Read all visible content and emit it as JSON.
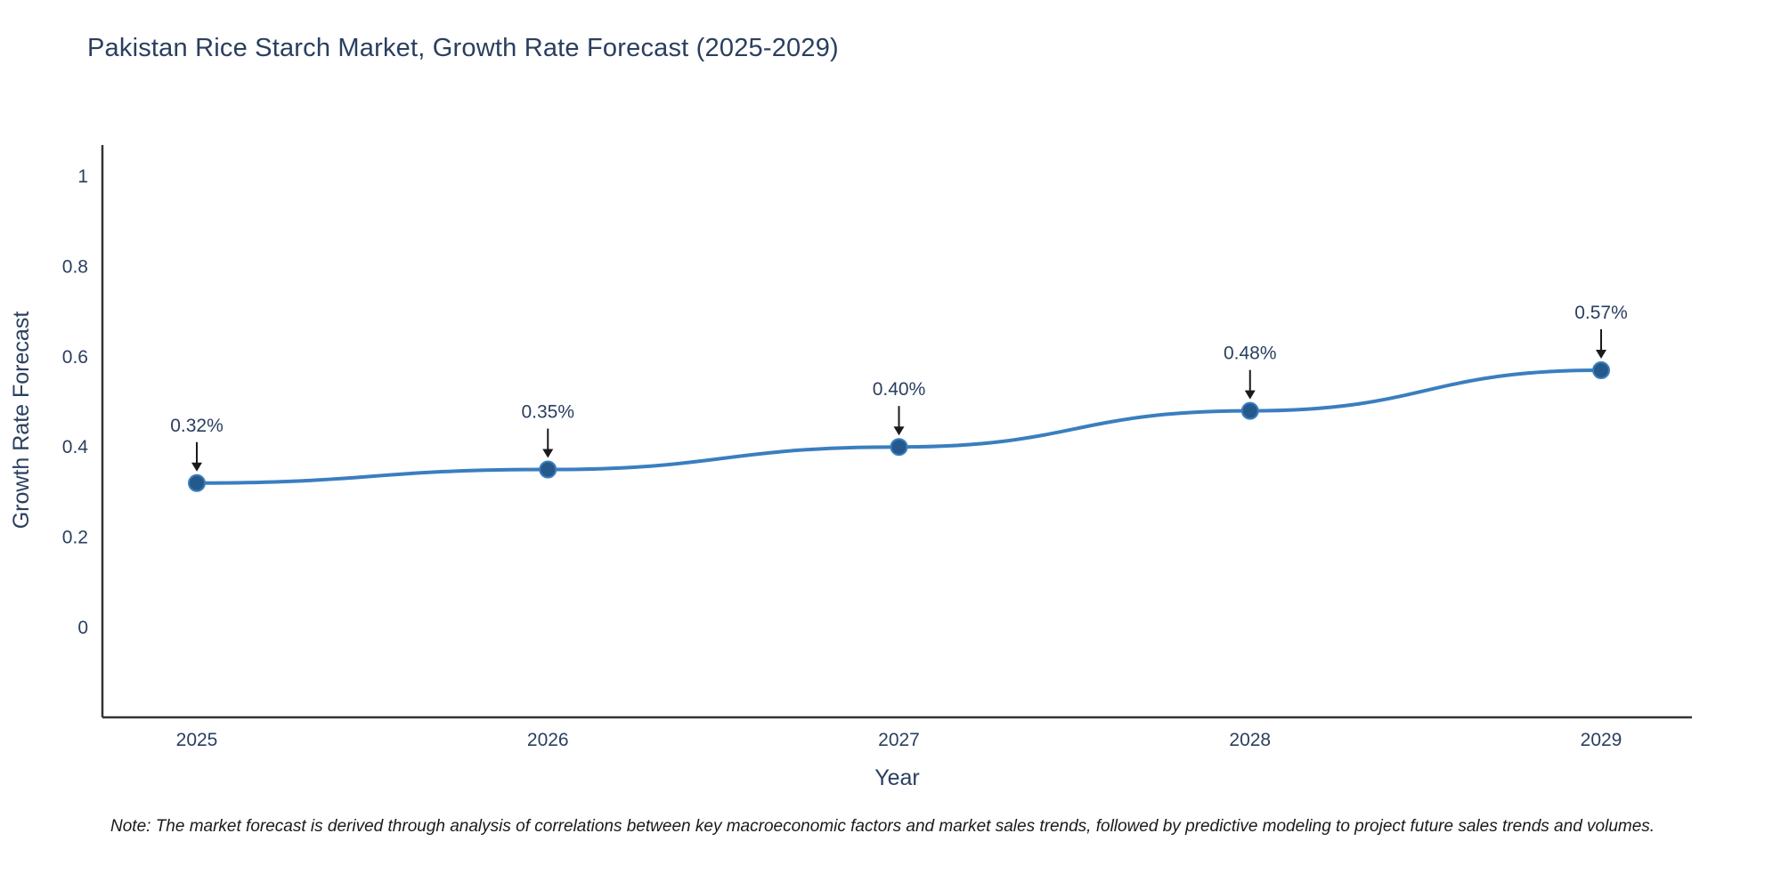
{
  "chart_data": {
    "type": "line",
    "title": "Pakistan Rice Starch Market, Growth Rate Forecast (2025-2029)",
    "xlabel": "Year",
    "ylabel": "Growth Rate Forecast",
    "categories": [
      "2025",
      "2026",
      "2027",
      "2028",
      "2029"
    ],
    "values": [
      0.32,
      0.35,
      0.4,
      0.48,
      0.57
    ],
    "point_labels": [
      "0.32%",
      "0.35%",
      "0.40%",
      "0.48%",
      "0.57%"
    ],
    "yticks": [
      "0",
      "0.2",
      "0.4",
      "0.6",
      "0.8",
      "1"
    ],
    "ytick_values": [
      0,
      0.2,
      0.4,
      0.6,
      0.8,
      1
    ],
    "ylim": [
      -0.2,
      1.07
    ],
    "grid": false,
    "legend": "none",
    "colors": {
      "line": "#3a7ebf",
      "marker": "#25598c",
      "axis": "#333333",
      "text": "#2a3f5f",
      "arrow": "#1a1a1a"
    }
  },
  "note": "Note: The market forecast is derived through analysis of correlations between key macroeconomic factors and market sales trends, followed by predictive modeling to project future sales trends and volumes."
}
